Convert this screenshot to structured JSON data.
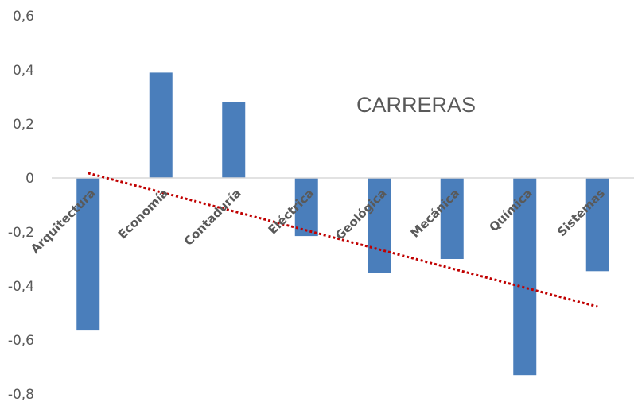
{
  "chart_data": {
    "type": "bar",
    "title": "CARRERAS",
    "categories": [
      "Arquitectura",
      "Economía",
      "Contaduría",
      "Eléctrica",
      "Geológica",
      "Mecánica",
      "Química",
      "Sistemas"
    ],
    "series": [
      {
        "values": [
          -0.565,
          0.39,
          0.28,
          -0.215,
          -0.35,
          -0.3,
          -0.73,
          -0.345
        ],
        "color": "#4a7ebb"
      }
    ],
    "trendline": {
      "type": "linear",
      "color": "#c00000",
      "style": "dotted"
    },
    "ylim": [
      -0.8,
      0.6
    ],
    "yticks": [
      "0,6",
      "0,4",
      "0,2",
      "0",
      "-0,2",
      "-0,4",
      "-0,6",
      "-0,8"
    ],
    "ytick_values": [
      0.6,
      0.4,
      0.2,
      0,
      -0.2,
      -0.4,
      -0.6,
      -0.8
    ],
    "xlabel": "",
    "ylabel": "",
    "grid": false,
    "legend": "none"
  }
}
